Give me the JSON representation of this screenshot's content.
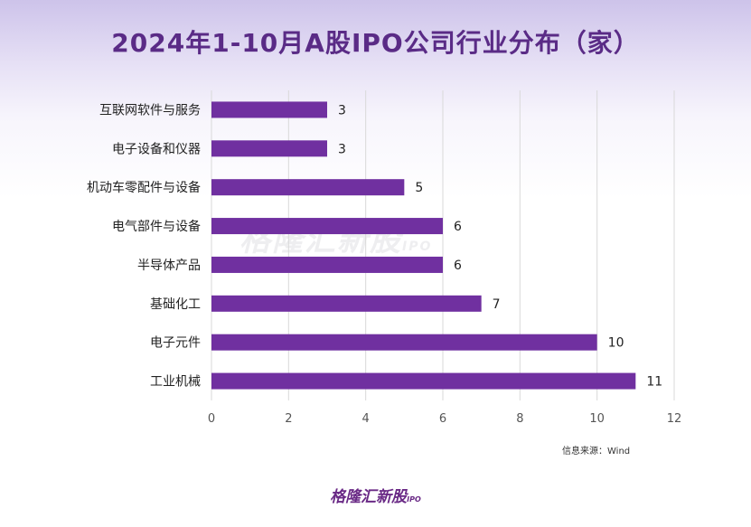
{
  "title": "2024年1-10月A股IPO公司行业分布（家）",
  "source_note": "信息来源：Wind",
  "watermark": {
    "main": "格隆汇新股",
    "sub": "IPO"
  },
  "footer_logo": {
    "main": "格隆汇新股",
    "sub": "IPO"
  },
  "colors": {
    "bar": "#7030a0",
    "title": "#5a2b86",
    "grid": "#d9d9d9"
  },
  "chart_data": {
    "type": "bar",
    "orientation": "horizontal",
    "categories": [
      "互联网软件与服务",
      "电子设备和仪器",
      "机动车零配件与设备",
      "电气部件与设备",
      "半导体产品",
      "基础化工",
      "电子元件",
      "工业机械"
    ],
    "values": [
      3,
      3,
      5,
      6,
      6,
      7,
      10,
      11
    ],
    "xlim": [
      0,
      12
    ],
    "xticks": [
      0,
      2,
      4,
      6,
      8,
      10,
      12
    ],
    "grid": true,
    "title": "2024年1-10月A股IPO公司行业分布（家）"
  }
}
